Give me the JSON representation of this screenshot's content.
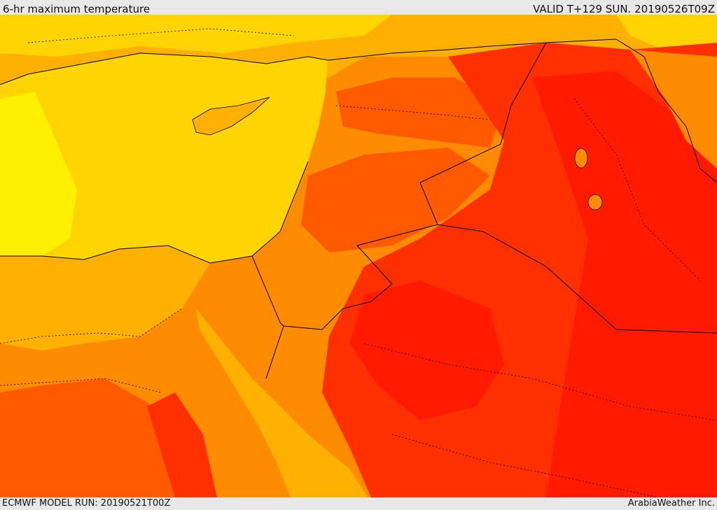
{
  "header": {
    "title": "6-hr maximum temperature",
    "valid": "VALID T+129 SUN. 20190526T09Z"
  },
  "footer": {
    "model_run": "ECMWF MODEL RUN: 20190521T00Z",
    "credit": "ArabiaWeather Inc."
  },
  "palette": {
    "sea_cool": "#ffd400",
    "sea_warm": "#ffef00",
    "warm": "#ffb000",
    "hot": "#ff8c00",
    "hotter": "#ff5a00",
    "hottest": "#ff3000",
    "extreme": "#ff1a00",
    "border": "#000000"
  }
}
